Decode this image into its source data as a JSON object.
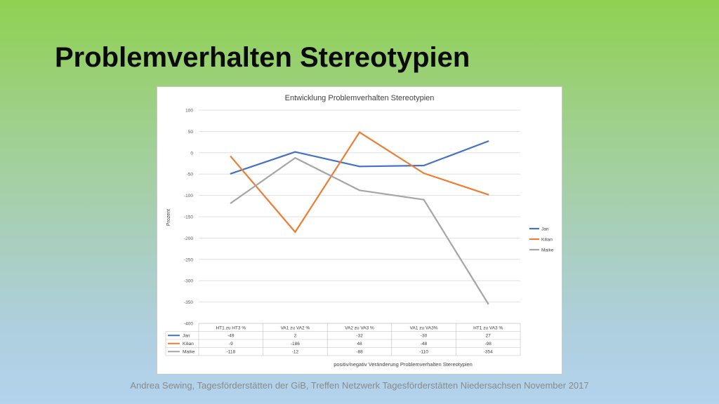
{
  "slide": {
    "title": "Problemverhalten Stereotypien",
    "footer": "Andrea Sewing, Tagesförderstätten der GiB, Treffen Netzwerk Tagesförderstätten Niedersachsen November 2017"
  },
  "chart_data": {
    "type": "line",
    "title": "Entwicklung Problemverhalten Stereotypien",
    "xlabel": "positiv/negativ Veränderung Problemverhalten Stereotypien",
    "ylabel": "Prozent",
    "ylim": [
      -400,
      100
    ],
    "yticks": [
      100,
      50,
      0,
      -50,
      -100,
      -150,
      -200,
      -250,
      -300,
      -350,
      -400
    ],
    "grid": true,
    "legend_position": "right",
    "categories": [
      "HT1 zu HT3 %",
      "VA1 zu VA2 %",
      "VA2 zu VA3 %",
      "VA1 zu VA3%",
      "HT1 zu VA3 %"
    ],
    "series": [
      {
        "name": "Jan",
        "color": "#4472c4",
        "values": [
          -49,
          2,
          -32,
          -30,
          27
        ]
      },
      {
        "name": "Kilian",
        "color": "#ed7d31",
        "values": [
          -9,
          -186,
          48,
          -48,
          -98
        ]
      },
      {
        "name": "Maike",
        "color": "#a5a5a5",
        "values": [
          -118,
          -12,
          -88,
          -110,
          -354
        ]
      }
    ]
  }
}
